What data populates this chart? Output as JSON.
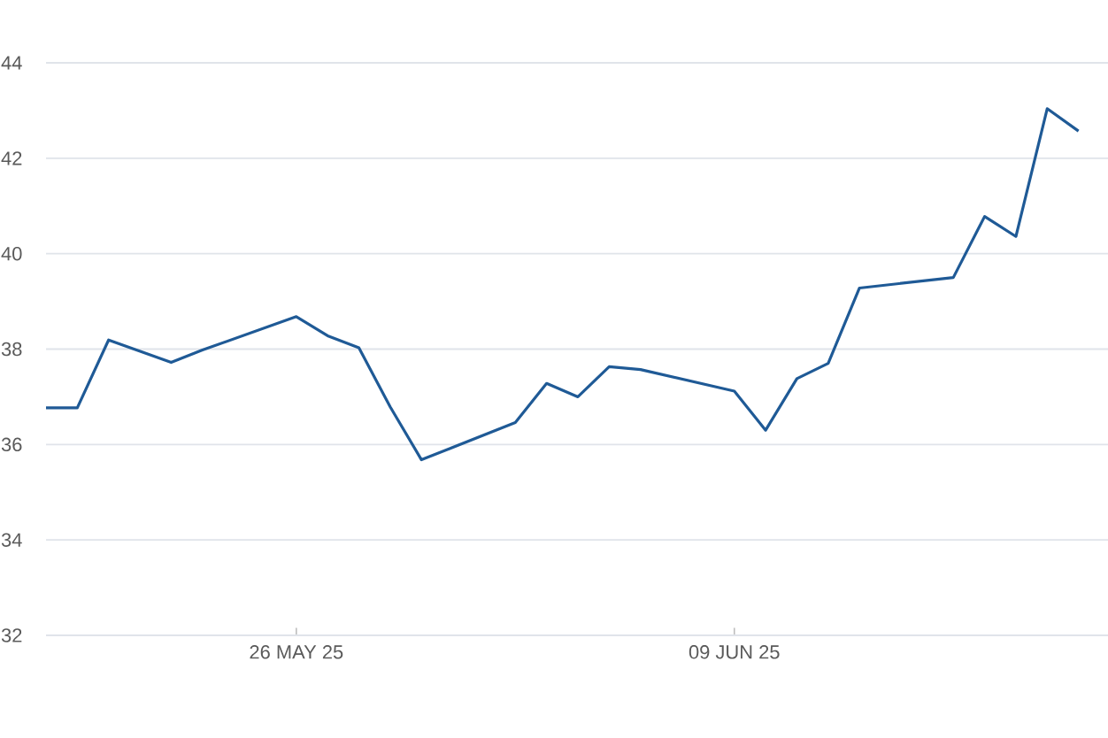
{
  "chart_data": {
    "type": "line",
    "x": [
      "2025-05-18",
      "2025-05-19",
      "2025-05-20",
      "2025-05-22",
      "2025-05-23",
      "2025-05-26",
      "2025-05-27",
      "2025-05-28",
      "2025-05-29",
      "2025-05-30",
      "2025-06-02",
      "2025-06-03",
      "2025-06-04",
      "2025-06-05",
      "2025-06-06",
      "2025-06-09",
      "2025-06-10",
      "2025-06-11",
      "2025-06-12",
      "2025-06-13",
      "2025-06-16",
      "2025-06-17",
      "2025-06-18",
      "2025-06-19",
      "2025-06-20"
    ],
    "series": [
      {
        "color": "#1f5a96",
        "values": [
          36.77,
          36.77,
          38.19,
          37.72,
          37.98,
          38.68,
          38.28,
          38.03,
          36.79,
          35.68,
          36.46,
          37.28,
          37.0,
          37.63,
          37.57,
          37.12,
          36.3,
          37.38,
          37.7,
          39.28,
          39.5,
          40.78,
          40.36,
          43.04,
          42.57
        ]
      }
    ],
    "xlim": [
      "2025-05-18",
      "2025-06-21"
    ],
    "xticks": [
      {
        "value": "2025-05-26",
        "label": "26 MAY 25"
      },
      {
        "value": "2025-06-09",
        "label": "09 JUN 25"
      }
    ],
    "ylim": [
      32,
      44
    ],
    "yticks": [
      32,
      34,
      36,
      38,
      40,
      42,
      44
    ],
    "grid": "y",
    "marker": "none",
    "line_style": "solid"
  }
}
